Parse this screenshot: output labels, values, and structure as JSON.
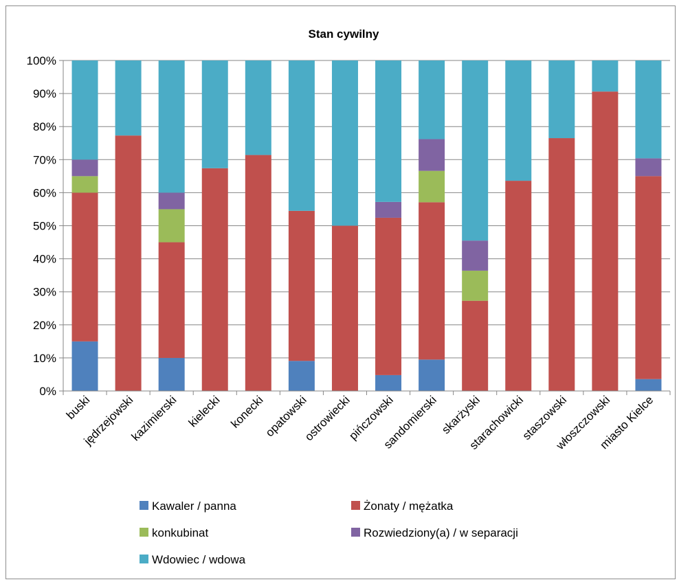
{
  "chart_data": {
    "type": "bar",
    "stacked": "percent",
    "title": "Stan cywilny",
    "xlabel": "",
    "ylabel": "",
    "ylim": [
      0,
      100
    ],
    "y_ticks": [
      "0%",
      "10%",
      "20%",
      "30%",
      "40%",
      "50%",
      "60%",
      "70%",
      "80%",
      "90%",
      "100%"
    ],
    "grid": true,
    "legend_position": "bottom",
    "categories": [
      "buski",
      "jędrzejowski",
      "kazimierski",
      "kielecki",
      "konecki",
      "opatowski",
      "ostrowiecki",
      "pińczowski",
      "sandomierski",
      "skarżyski",
      "starachowicki",
      "staszowski",
      "włoszczowski",
      "miasto Kielce"
    ],
    "series": [
      {
        "name": "Kawaler / panna",
        "color": "#4f81bd",
        "values": [
          15,
          0,
          10,
          0,
          0,
          9.1,
          0,
          4.8,
          9.5,
          0,
          0,
          0,
          0,
          3.6
        ]
      },
      {
        "name": "Żonaty / mężatka",
        "color": "#c0504d",
        "values": [
          45,
          77.3,
          35,
          67.4,
          71.4,
          45.4,
          50,
          47.6,
          47.6,
          27.3,
          63.6,
          76.5,
          90.6,
          61.4
        ]
      },
      {
        "name": "konkubinat",
        "color": "#9bbb59",
        "values": [
          5,
          0,
          10,
          0,
          0,
          0,
          0,
          0,
          9.5,
          9.1,
          0,
          0,
          0,
          0
        ]
      },
      {
        "name": "Rozwiedziony(a) / w separacji",
        "color": "#8064a2",
        "values": [
          5,
          0,
          5,
          0,
          0,
          0,
          0,
          4.8,
          9.6,
          9.1,
          0,
          0,
          0,
          5.4
        ]
      },
      {
        "name": "Wdowiec / wdowa",
        "color": "#4bacc6",
        "values": [
          30,
          22.7,
          40,
          32.6,
          28.6,
          45.5,
          50,
          42.8,
          23.8,
          54.5,
          36.4,
          23.5,
          9.4,
          29.6
        ]
      }
    ]
  }
}
